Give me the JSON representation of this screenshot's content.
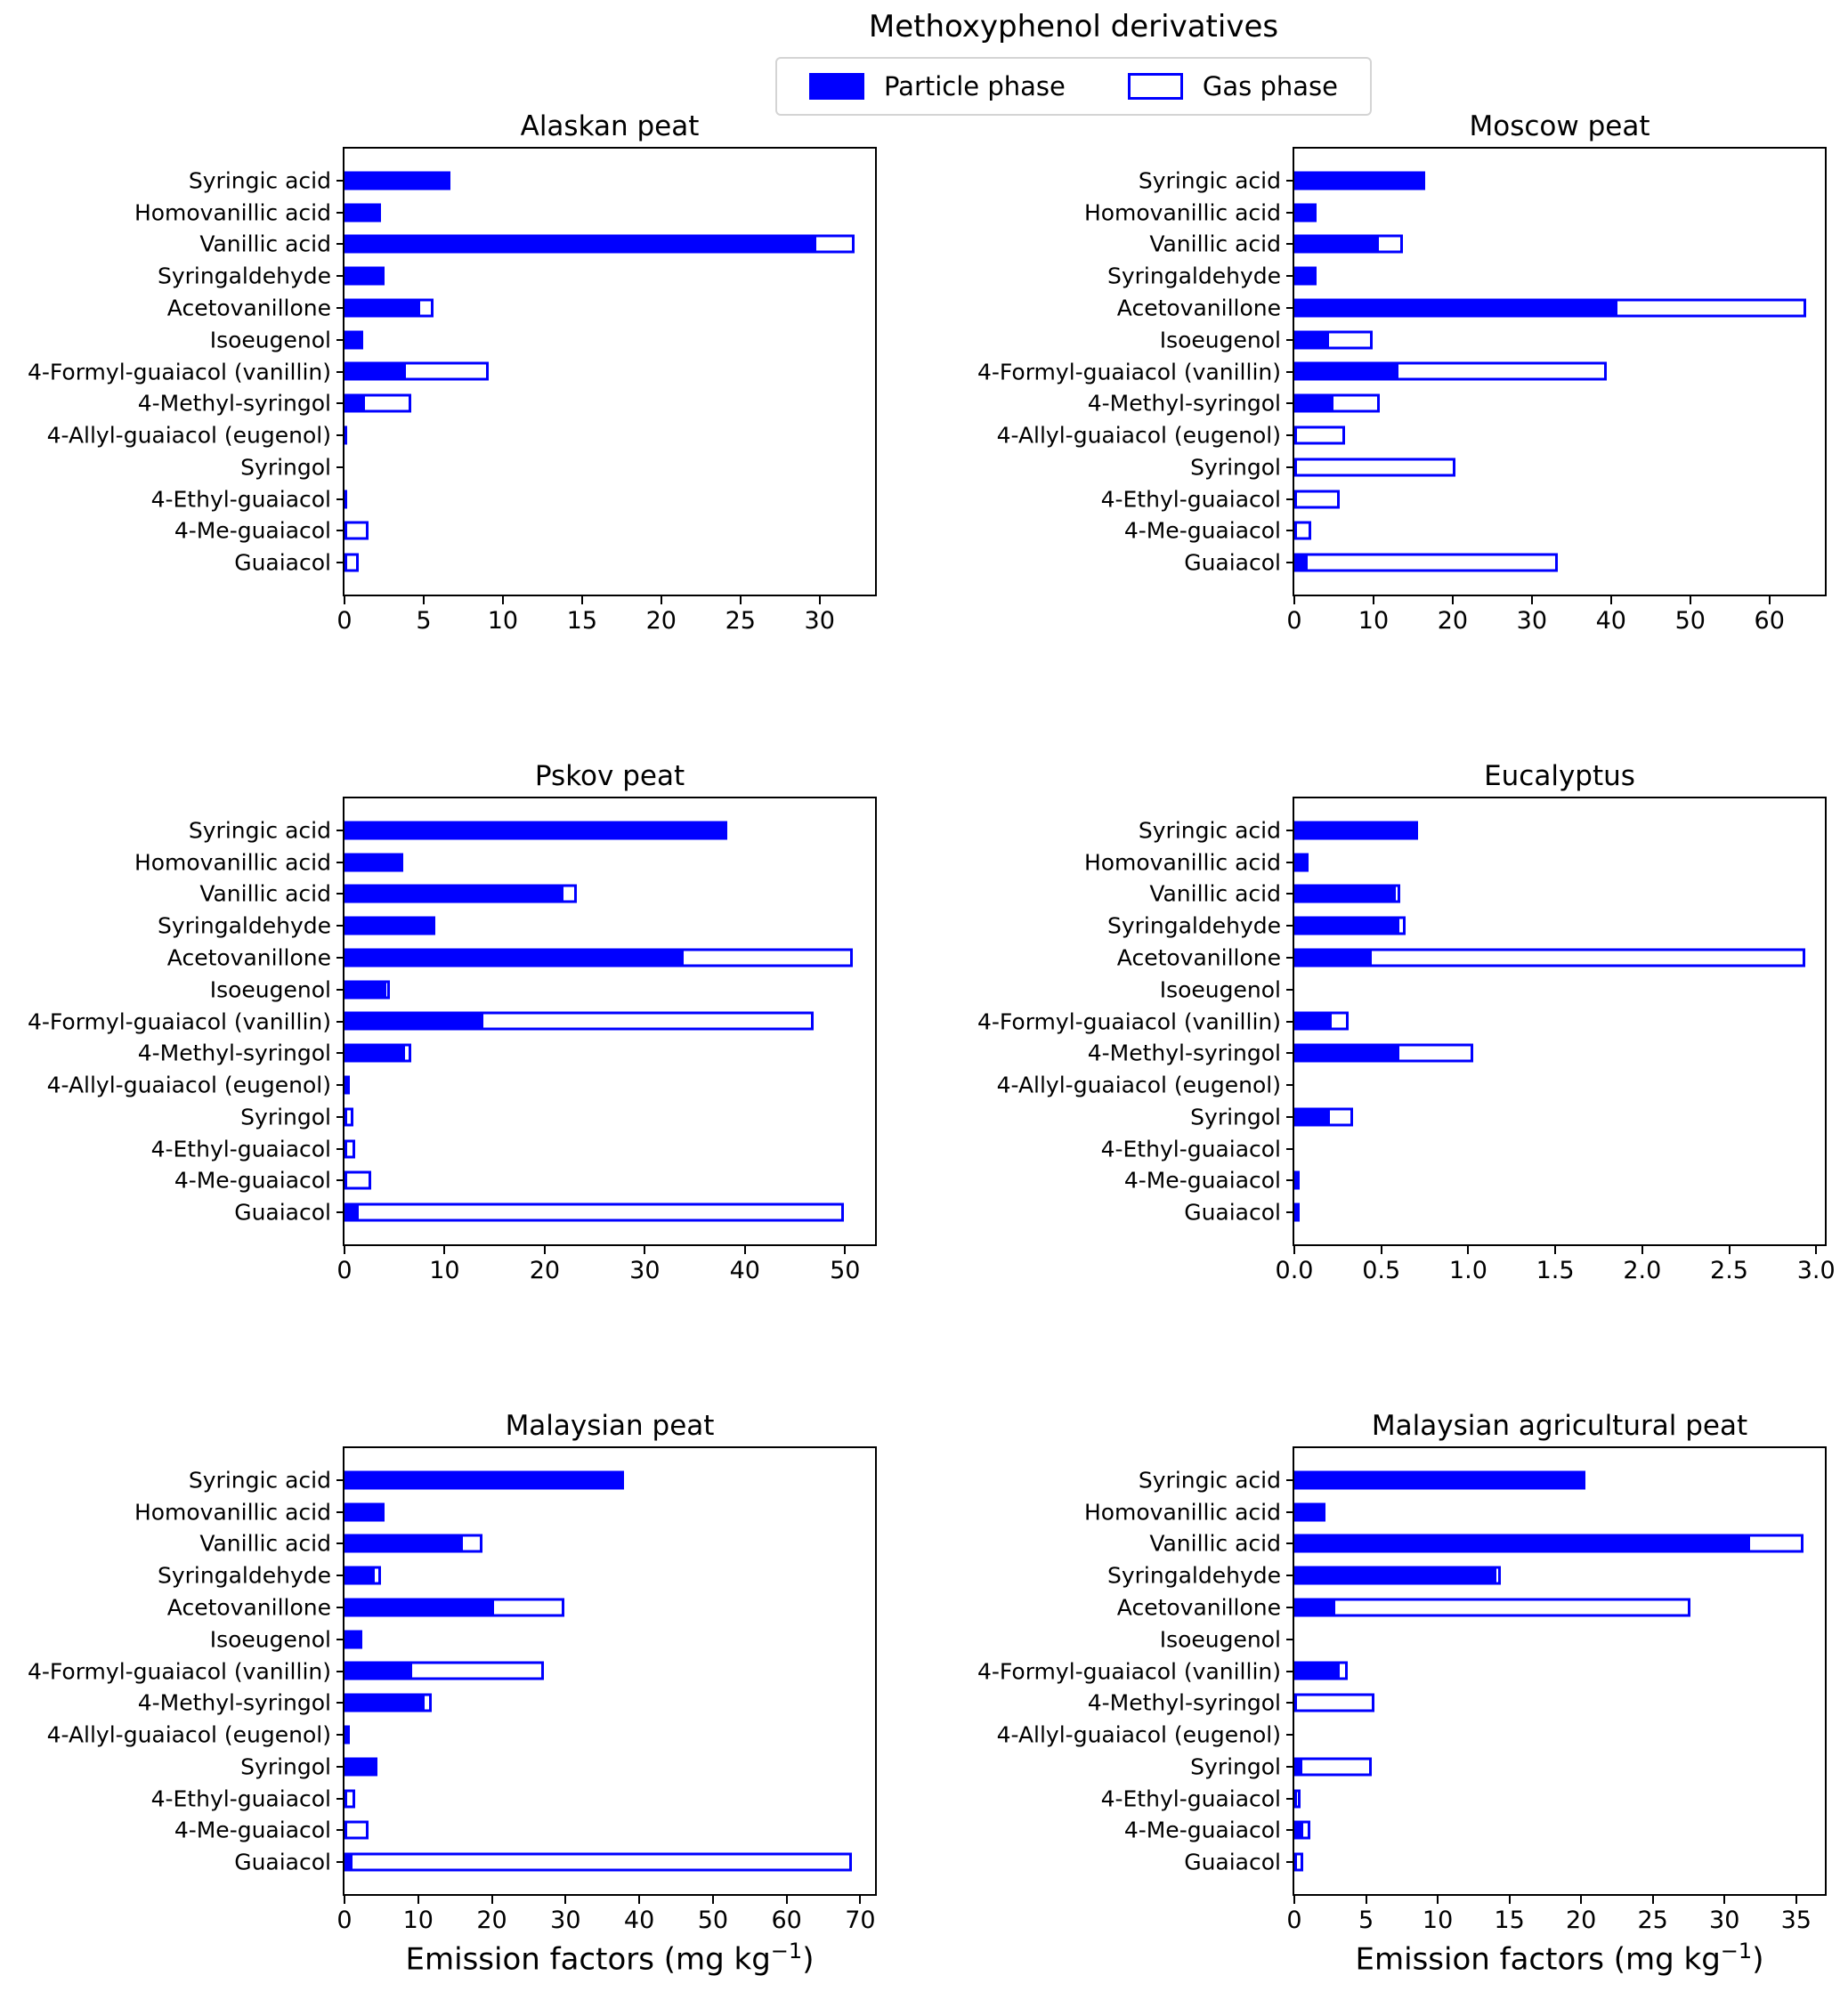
{
  "figure": {
    "title": "Methoxyphenol derivatives",
    "legend": {
      "particle_label": "Particle phase",
      "gas_label": "Gas phase"
    },
    "xaxis_label": {
      "pre": "Emission factors (mg kg",
      "sup": "−1",
      "post": ")"
    },
    "colors": {
      "bar_blue": "#0000ff",
      "text": "#000000",
      "frame": "#000000",
      "legend_border": "#d4d4d4"
    }
  },
  "categories": [
    "Syringic acid",
    "Homovanillic acid",
    "Vanillic acid",
    "Syringaldehyde",
    "Acetovanillone",
    "Isoeugenol",
    "4-Formyl-guaiacol (vanillin)",
    "4-Methyl-syringol",
    "4-Allyl-guaiacol (eugenol)",
    "Syringol",
    "4-Ethyl-guaiacol",
    "4-Me-guaiacol",
    "Guaiacol"
  ],
  "chart_data": [
    {
      "type": "bar",
      "orientation": "horizontal_stacked",
      "title": "Alaskan peat",
      "xlim": [
        0,
        33.5
      ],
      "xticks": [
        0,
        5,
        10,
        15,
        20,
        25,
        30
      ],
      "xtick_labels": [
        "0",
        "5",
        "10",
        "15",
        "20",
        "25",
        "30"
      ],
      "series": [
        {
          "name": "Particle phase",
          "values": [
            6.7,
            2.3,
            29.6,
            2.2,
            4.6,
            1.2,
            3.7,
            1.1,
            0.15,
            0,
            0.15,
            0,
            0
          ]
        },
        {
          "name": "Gas phase",
          "values": [
            0,
            0,
            2.6,
            0.2,
            1.0,
            0,
            5.4,
            3.1,
            0,
            0,
            0,
            1.5,
            0.9
          ]
        }
      ]
    },
    {
      "type": "bar",
      "orientation": "horizontal_stacked",
      "title": "Moscow peat",
      "xlim": [
        0,
        67
      ],
      "xticks": [
        0,
        10,
        20,
        30,
        40,
        50,
        60
      ],
      "xtick_labels": [
        "0",
        "10",
        "20",
        "30",
        "40",
        "50",
        "60"
      ],
      "series": [
        {
          "name": "Particle phase",
          "values": [
            16.5,
            2.8,
            10.3,
            2.1,
            40.5,
            4.0,
            12.8,
            4.6,
            0,
            0,
            0,
            0,
            1.4
          ]
        },
        {
          "name": "Gas phase",
          "values": [
            0,
            0,
            3.4,
            0.4,
            24.1,
            5.9,
            26.7,
            6.2,
            6.4,
            20.3,
            5.7,
            2.1,
            31.9
          ]
        }
      ]
    },
    {
      "type": "bar",
      "orientation": "horizontal_stacked",
      "title": "Pskov peat",
      "xlim": [
        0,
        53
      ],
      "xticks": [
        0,
        10,
        20,
        30,
        40,
        50
      ],
      "xtick_labels": [
        "0",
        "10",
        "20",
        "30",
        "40",
        "50"
      ],
      "series": [
        {
          "name": "Particle phase",
          "values": [
            38.2,
            5.9,
            21.6,
            8.5,
            33.6,
            3.9,
            13.6,
            5.8,
            0,
            0,
            0,
            0,
            1.2
          ]
        },
        {
          "name": "Gas phase",
          "values": [
            0,
            0,
            1.6,
            0.6,
            17.2,
            0.6,
            33.3,
            0.9,
            0.5,
            0.9,
            1.1,
            2.7,
            48.7
          ]
        }
      ]
    },
    {
      "type": "bar",
      "orientation": "horizontal_stacked",
      "title": "Eucalyptus",
      "xlim": [
        0,
        3.05
      ],
      "xticks": [
        0.0,
        0.5,
        1.0,
        1.5,
        2.0,
        2.5,
        3.0
      ],
      "xtick_labels": [
        "0.0",
        "0.5",
        "1.0",
        "1.5",
        "2.0",
        "2.5",
        "3.0"
      ],
      "series": [
        {
          "name": "Particle phase",
          "values": [
            0.71,
            0.08,
            0.57,
            0.59,
            0.43,
            0,
            0.2,
            0.59,
            0,
            0.19,
            0,
            0,
            0
          ]
        },
        {
          "name": "Gas phase",
          "values": [
            0,
            0,
            0.04,
            0.05,
            2.51,
            0,
            0.11,
            0.44,
            0,
            0.15,
            0,
            0.03,
            0.02
          ]
        }
      ]
    },
    {
      "type": "bar",
      "orientation": "horizontal_stacked",
      "title": "Malaysian peat",
      "xlim": [
        0,
        72
      ],
      "xticks": [
        0,
        10,
        20,
        30,
        40,
        50,
        60,
        70
      ],
      "xtick_labels": [
        "0",
        "10",
        "20",
        "30",
        "40",
        "50",
        "60",
        "70"
      ],
      "series": [
        {
          "name": "Particle phase",
          "values": [
            37.9,
            5.4,
            15.7,
            3.7,
            19.9,
            2.4,
            8.8,
            10.5,
            0,
            3.8,
            0,
            0,
            0.7
          ]
        },
        {
          "name": "Gas phase",
          "values": [
            0,
            0,
            3.0,
            1.3,
            9.9,
            0,
            18.3,
            1.3,
            0.5,
            0.6,
            1.5,
            3.3,
            68.2
          ]
        }
      ]
    },
    {
      "type": "bar",
      "orientation": "horizontal_stacked",
      "title": "Malaysian agricultural peat",
      "xlim": [
        0,
        37
      ],
      "xticks": [
        0,
        5,
        10,
        15,
        20,
        25,
        30,
        35
      ],
      "xtick_labels": [
        "0",
        "5",
        "10",
        "15",
        "20",
        "25",
        "30",
        "35"
      ],
      "series": [
        {
          "name": "Particle phase",
          "values": [
            20.3,
            2.2,
            31.6,
            13.9,
            2.7,
            0,
            3.0,
            0,
            0,
            0.4,
            0,
            0.45,
            0
          ]
        },
        {
          "name": "Gas phase",
          "values": [
            0,
            0,
            3.9,
            0.5,
            24.9,
            0,
            0.7,
            5.6,
            0,
            5.0,
            0.45,
            0.65,
            0.6
          ]
        }
      ]
    }
  ]
}
